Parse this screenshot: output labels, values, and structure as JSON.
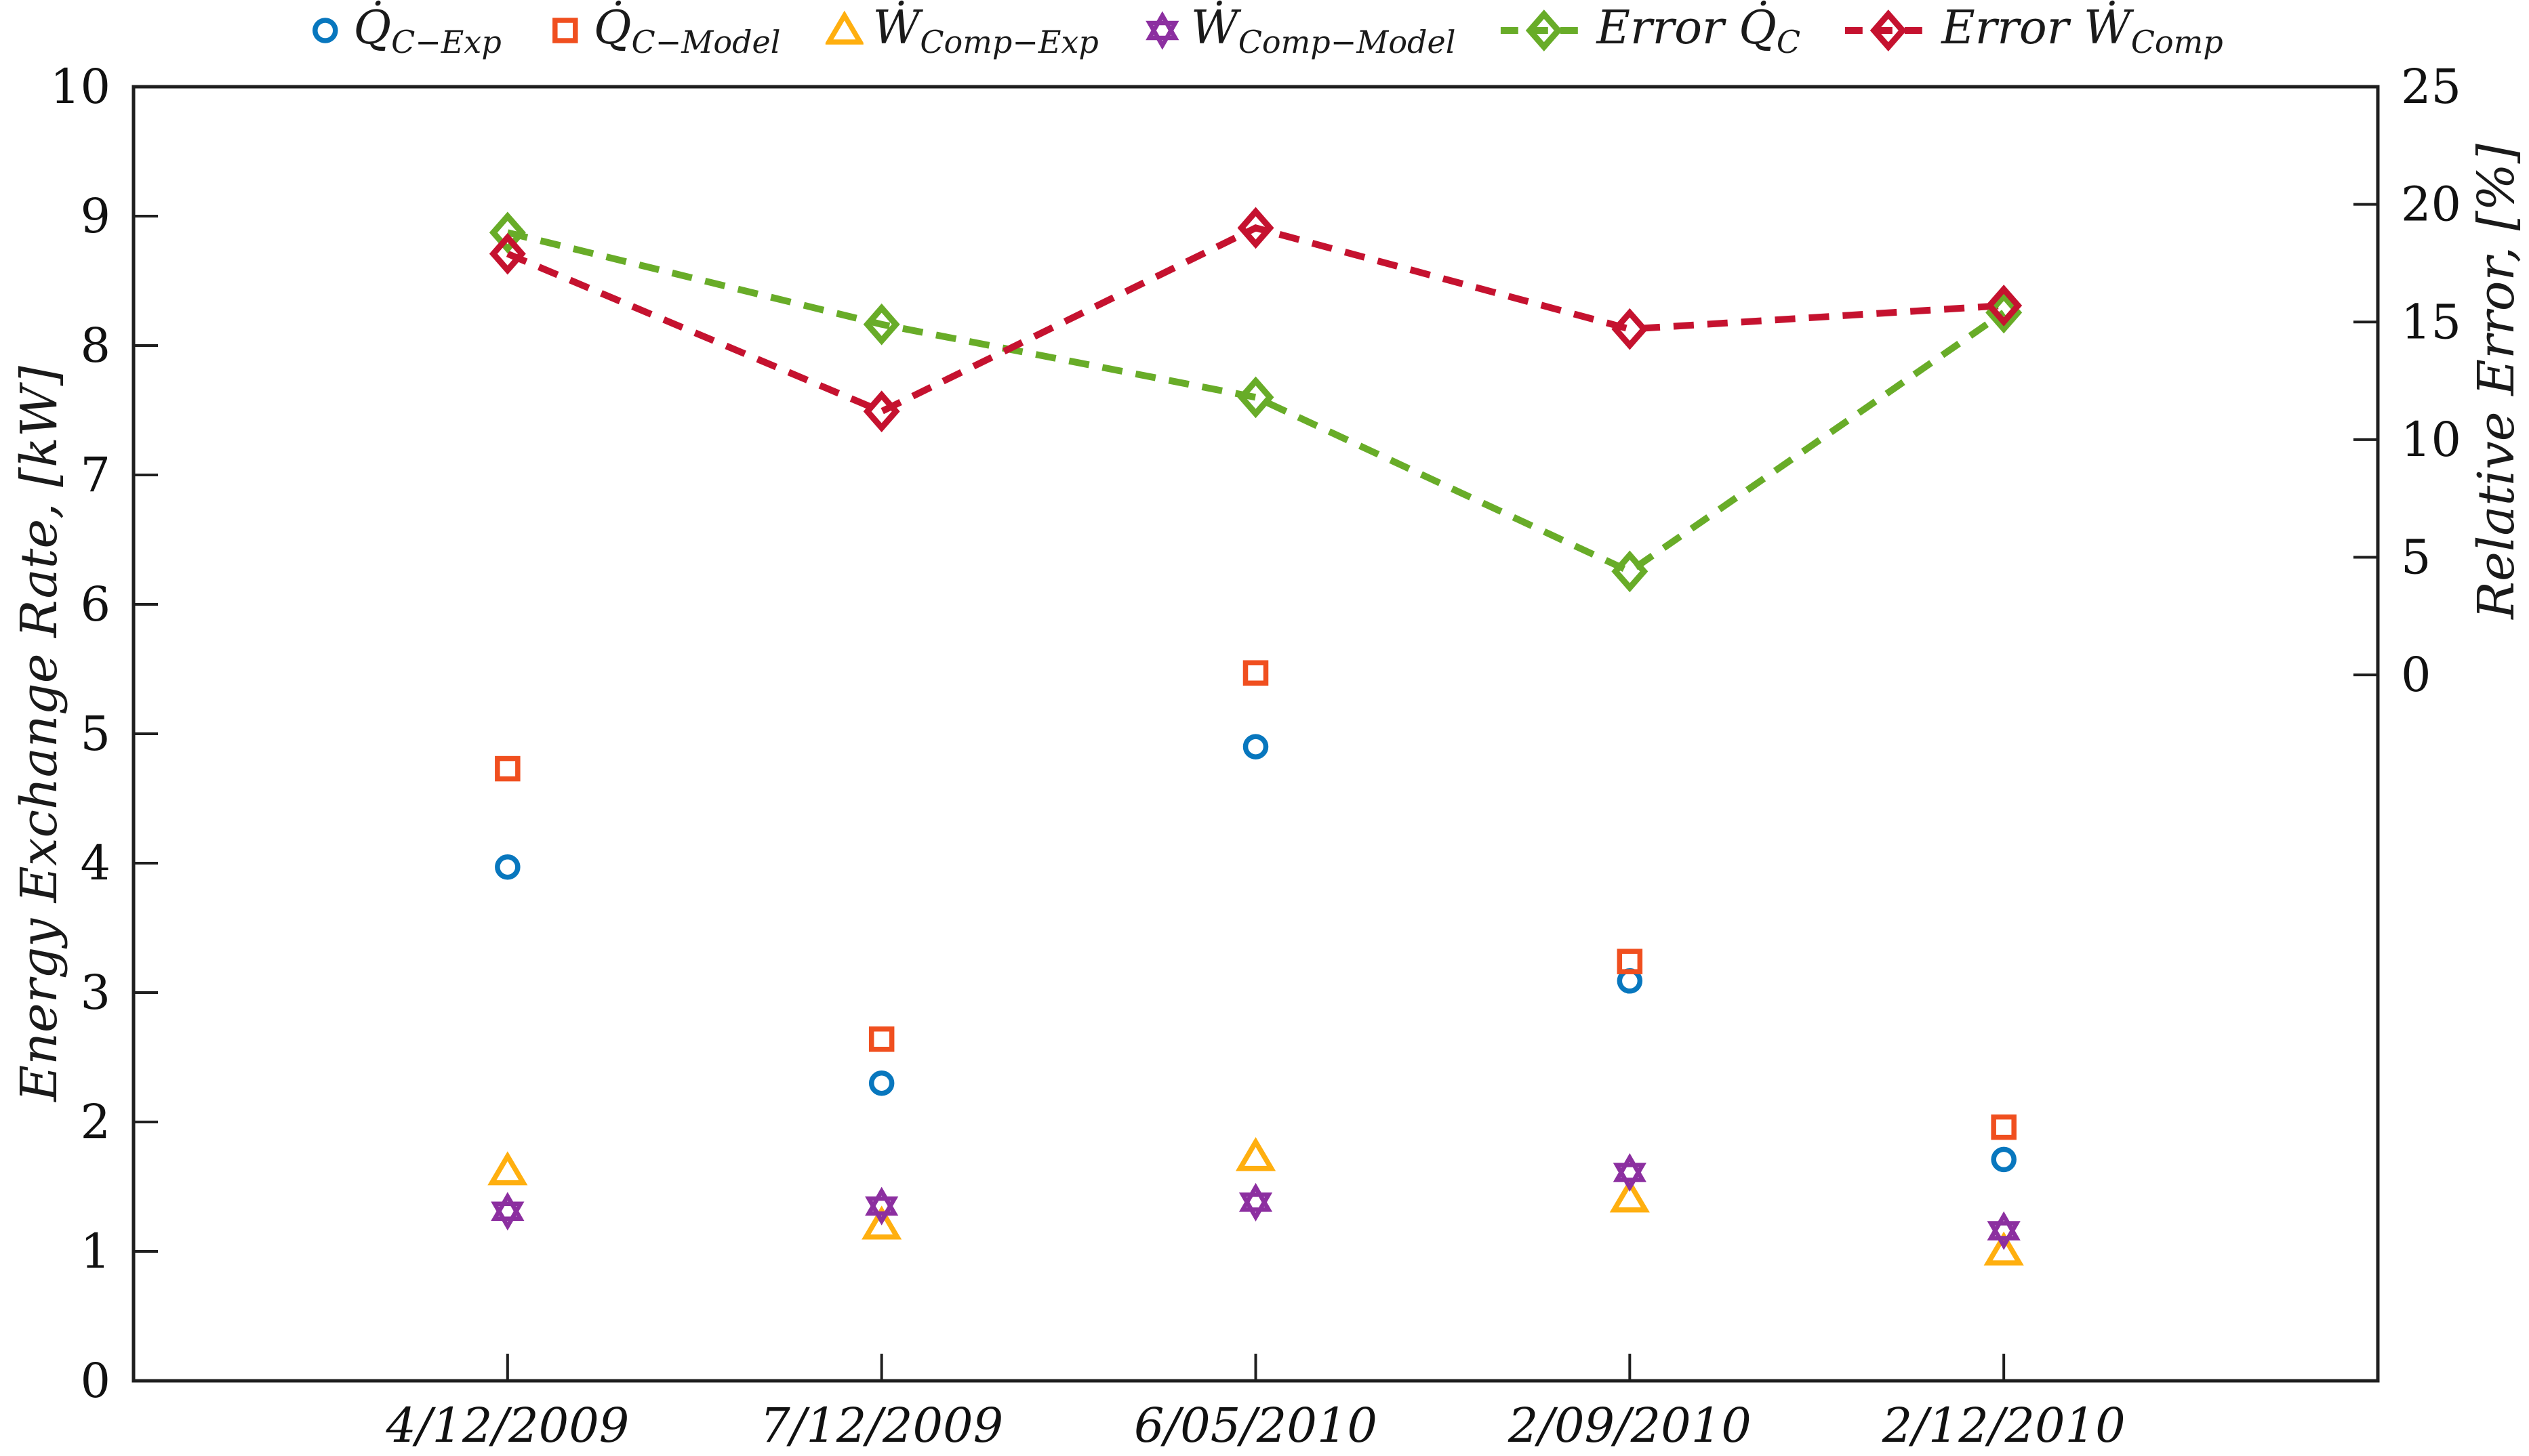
{
  "figure_background": "#ffffff",
  "axes": {
    "left": {
      "label": "Energy Exchange Rate, [kW]",
      "ylim": [
        0,
        10
      ],
      "ticks": [
        0,
        1,
        2,
        3,
        4,
        5,
        6,
        7,
        8,
        9,
        10
      ]
    },
    "right": {
      "label": "Relative Error, [%]",
      "ylim": [
        -30,
        25
      ],
      "ticks": [
        0,
        5,
        10,
        15,
        20,
        25
      ]
    }
  },
  "colors": {
    "blue": "#0877BE",
    "orange": "#F04F1F",
    "amber": "#FFAF0F",
    "purple": "#8C2FA0",
    "green": "#68AC28",
    "crimson": "#C5122F",
    "axis": "#1f1f1f"
  },
  "legend": {
    "items": [
      {
        "key": "qc-exp",
        "prefix": "",
        "main": "Q̇",
        "sub": "C−Exp",
        "marker": "circle",
        "color": "#0877BE",
        "dashed": false
      },
      {
        "key": "qc-model",
        "prefix": "",
        "main": "Q̇",
        "sub": "C−Model",
        "marker": "square",
        "color": "#F04F1F",
        "dashed": false
      },
      {
        "key": "wcomp-exp",
        "prefix": "",
        "main": "Ẇ",
        "sub": "Comp−Exp",
        "marker": "triangle",
        "color": "#FFAF0F",
        "dashed": false
      },
      {
        "key": "wcomp-model",
        "prefix": "",
        "main": "Ẇ",
        "sub": "Comp−Model",
        "marker": "hexagram",
        "color": "#8C2FA0",
        "dashed": false
      },
      {
        "key": "error-qc",
        "prefix": "Error ",
        "main": "Q̇",
        "sub": "C",
        "marker": "diamond",
        "color": "#68AC28",
        "dashed": true
      },
      {
        "key": "error-wcomp",
        "prefix": "Error ",
        "main": "Ẇ",
        "sub": "Comp",
        "marker": "diamond",
        "color": "#C5122F",
        "dashed": true
      }
    ]
  },
  "chart_data": {
    "type": "scatter",
    "categories": [
      "4/12/2009",
      "7/12/2009",
      "6/05/2010",
      "2/09/2010",
      "2/12/2010"
    ],
    "title": "",
    "xlabel": "",
    "left_ylabel": "Energy Exchange Rate, [kW]",
    "right_ylabel": "Relative Error, [%]",
    "left_ylim": [
      0,
      10
    ],
    "right_ylim": [
      -30,
      25
    ],
    "grid": false,
    "legend_position": "top-center",
    "series": [
      {
        "name": "Q̇ C−Exp",
        "axis": "left",
        "marker": "circle",
        "line": "none",
        "color": "#0877BE",
        "values": [
          3.97,
          2.3,
          4.9,
          3.09,
          1.71
        ]
      },
      {
        "name": "Q̇ C−Model",
        "axis": "left",
        "marker": "square",
        "line": "none",
        "color": "#F04F1F",
        "values": [
          4.73,
          2.64,
          5.47,
          3.24,
          1.96
        ]
      },
      {
        "name": "Ẇ Comp−Exp",
        "axis": "left",
        "marker": "triangle",
        "line": "none",
        "color": "#FFAF0F",
        "values": [
          1.62,
          1.2,
          1.73,
          1.41,
          1.0
        ]
      },
      {
        "name": "Ẇ Comp−Model",
        "axis": "left",
        "marker": "hexagram",
        "line": "none",
        "color": "#8C2FA0",
        "values": [
          1.31,
          1.35,
          1.38,
          1.61,
          1.16
        ]
      },
      {
        "name": "Error Q̇ C",
        "axis": "right",
        "marker": "diamond",
        "line": "dashed",
        "color": "#68AC28",
        "values": [
          18.8,
          14.9,
          11.8,
          4.4,
          15.4
        ]
      },
      {
        "name": "Error Ẇ Comp",
        "axis": "right",
        "marker": "diamond",
        "line": "dashed",
        "color": "#C5122F",
        "values": [
          17.9,
          11.2,
          19.0,
          14.7,
          15.7
        ]
      }
    ]
  }
}
